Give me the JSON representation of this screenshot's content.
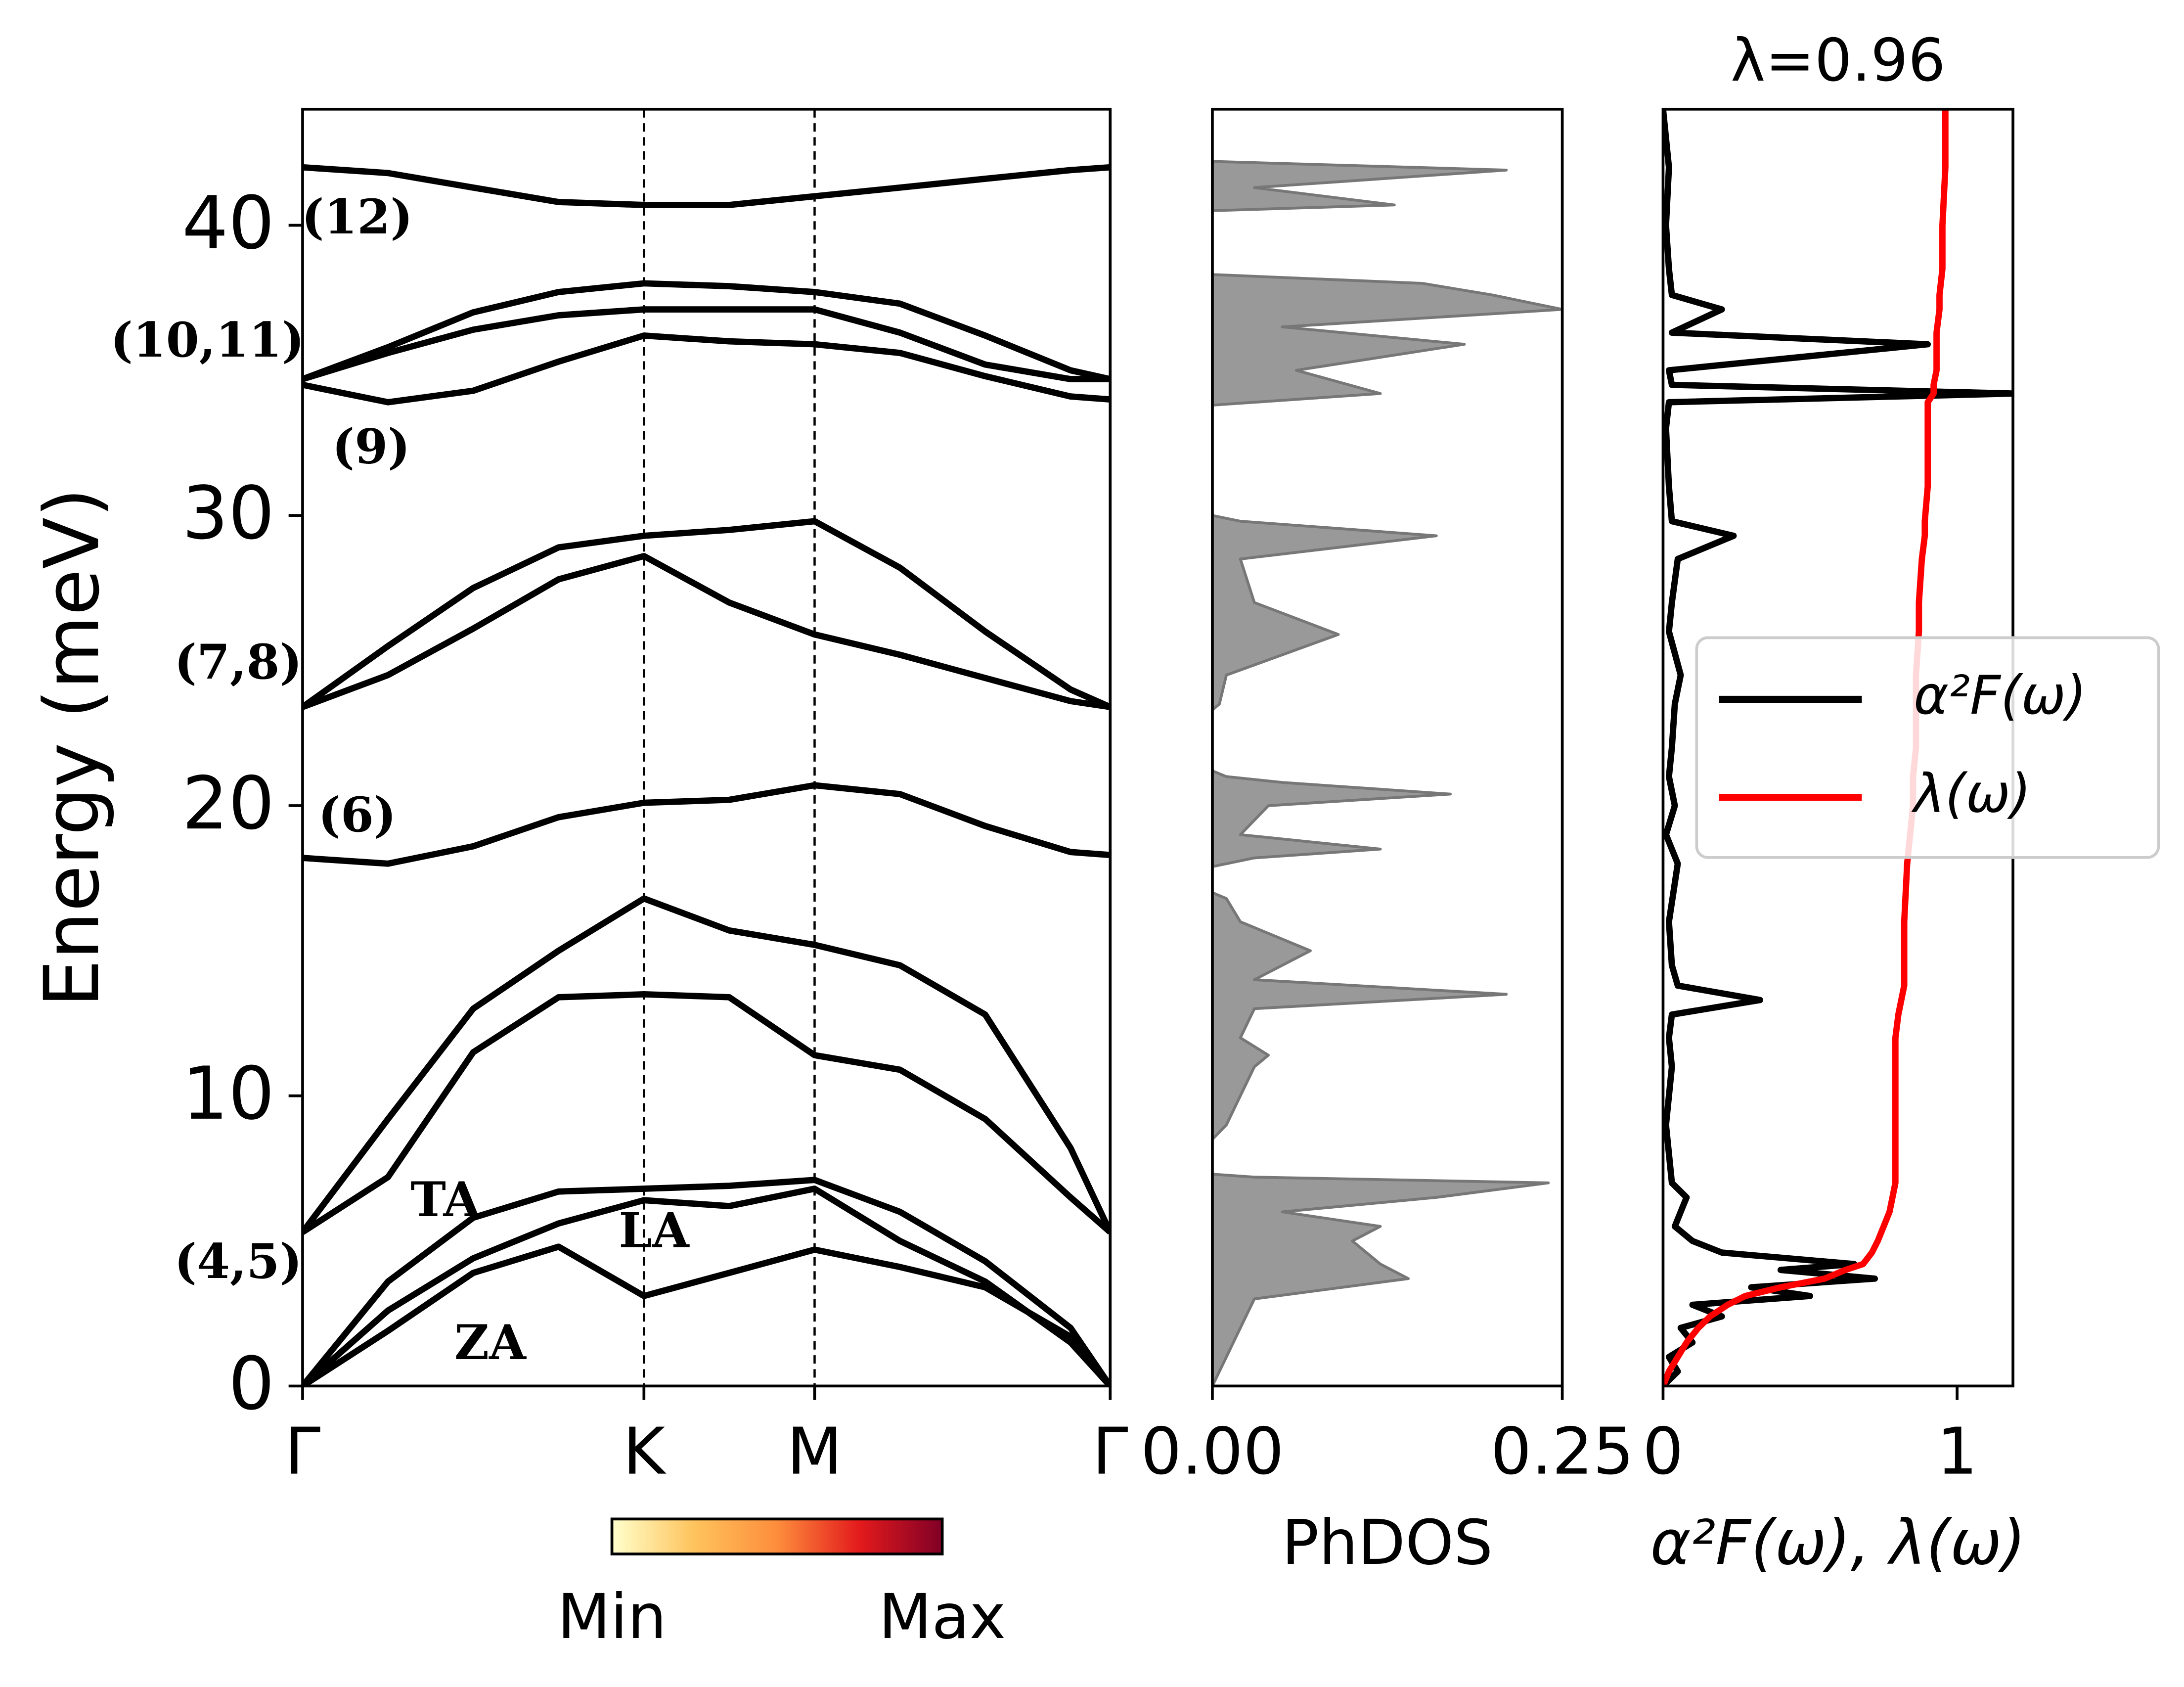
{
  "chart_data": [
    {
      "type": "line",
      "ylabel": "Energy (meV)",
      "x": [
        0,
        0.25,
        0.5,
        0.75,
        1,
        1.25,
        1.5,
        1.75,
        2,
        2.25,
        2.366
      ],
      "xlim": [
        0,
        2.366
      ],
      "xticks": [
        {
          "value": 0,
          "label": "Γ"
        },
        {
          "value": 1,
          "label": "K"
        },
        {
          "value": 1.5,
          "label": "M"
        },
        {
          "value": 2.366,
          "label": "Γ"
        }
      ],
      "ylim": [
        0,
        44
      ],
      "yticks": [
        0,
        10,
        20,
        30,
        40
      ],
      "series": [
        {
          "color": "#000000",
          "values": [
            0,
            1.9,
            3.9,
            4.8,
            3.1,
            3.9,
            4.7,
            4.1,
            3.4,
            1.7,
            0
          ]
        },
        {
          "color": "#000000",
          "values": [
            0,
            2.6,
            4.4,
            5.6,
            6.4,
            6.2,
            6.8,
            5.0,
            3.6,
            1.5,
            0
          ]
        },
        {
          "color": "#000000",
          "values": [
            0,
            3.6,
            5.8,
            6.7,
            6.8,
            6.9,
            7.1,
            6.0,
            4.3,
            2.0,
            0
          ]
        },
        {
          "color": "#000000",
          "values": [
            5.3,
            7.2,
            11.5,
            13.4,
            13.5,
            13.4,
            11.4,
            10.9,
            9.2,
            6.5,
            5.3
          ]
        },
        {
          "color": "#000000",
          "values": [
            5.3,
            9.2,
            13.0,
            15.0,
            16.8,
            15.7,
            15.2,
            14.5,
            12.8,
            8.2,
            5.3
          ]
        },
        {
          "color": "#000000",
          "values": [
            18.2,
            18.0,
            18.6,
            19.6,
            20.1,
            20.2,
            20.7,
            20.4,
            19.3,
            18.4,
            18.3
          ]
        },
        {
          "color": "#000000",
          "values": [
            23.4,
            24.5,
            26.1,
            27.8,
            28.6,
            27.0,
            25.9,
            25.2,
            24.4,
            23.6,
            23.4
          ]
        },
        {
          "color": "#000000",
          "values": [
            23.4,
            25.5,
            27.5,
            28.9,
            29.3,
            29.5,
            29.8,
            28.2,
            26.0,
            24.0,
            23.4
          ]
        },
        {
          "color": "#000000",
          "values": [
            34.5,
            33.9,
            34.3,
            35.3,
            36.2,
            36.0,
            35.9,
            35.6,
            34.8,
            34.1,
            34.0
          ]
        },
        {
          "color": "#000000",
          "values": [
            34.7,
            35.6,
            36.4,
            36.9,
            37.1,
            37.1,
            37.1,
            36.3,
            35.2,
            34.7,
            34.7
          ]
        },
        {
          "color": "#000000",
          "values": [
            34.7,
            35.8,
            37.0,
            37.7,
            38.0,
            37.9,
            37.7,
            37.3,
            36.2,
            35.0,
            34.7
          ]
        },
        {
          "color": "#000000",
          "values": [
            42.0,
            41.8,
            41.3,
            40.8,
            40.7,
            40.7,
            41.0,
            41.3,
            41.6,
            41.9,
            42.0
          ]
        }
      ],
      "annotations": [
        "(12)",
        "(10,11)",
        "(9)",
        "(7,8)",
        "(6)",
        "(4,5)",
        "TA",
        "LA",
        "ZA"
      ],
      "colorbar_labels": [
        "Min",
        "Max"
      ],
      "colorbar_colors": [
        "#ffffcc",
        "#fec35c",
        "#fd8d3c",
        "#e31a1c",
        "#800026"
      ]
    },
    {
      "type": "area",
      "xlabel": "PhDOS",
      "xlim": [
        0,
        0.25
      ],
      "xticks": [
        {
          "value": 0,
          "label": "0.00"
        },
        {
          "value": 0.25,
          "label": "0.25"
        }
      ],
      "ylim": [
        0,
        44
      ],
      "y": [
        0,
        1,
        2,
        3,
        3.7,
        4.2,
        5,
        5.5,
        6,
        6.5,
        7,
        7.2,
        7.3,
        8.5,
        9,
        10,
        11,
        11.4,
        12,
        13,
        13.5,
        14,
        15,
        16,
        16.8,
        17,
        17.9,
        18.2,
        18.5,
        19,
        20,
        20.4,
        20.8,
        21,
        21.2,
        23.3,
        23.5,
        24.5,
        25.9,
        27,
        28.5,
        29.3,
        29.8,
        30,
        33.8,
        34.2,
        35,
        35.9,
        36.5,
        37.1,
        37.6,
        38,
        38.3,
        40.5,
        40.7,
        41.3,
        41.9,
        42.2
      ],
      "series": [
        {
          "color": "#999999",
          "values": [
            0,
            0.01,
            0.02,
            0.03,
            0.14,
            0.12,
            0.1,
            0.12,
            0.05,
            0.16,
            0.24,
            0.03,
            0,
            0,
            0.01,
            0.02,
            0.03,
            0.04,
            0.02,
            0.03,
            0.21,
            0.03,
            0.07,
            0.02,
            0.01,
            0,
            0,
            0.03,
            0.12,
            0.02,
            0.04,
            0.17,
            0.05,
            0.01,
            0,
            0,
            0.005,
            0.01,
            0.09,
            0.03,
            0.02,
            0.16,
            0.02,
            0,
            0,
            0.12,
            0.06,
            0.18,
            0.05,
            0.25,
            0.2,
            0.15,
            0,
            0,
            0.13,
            0.03,
            0.21,
            0
          ]
        }
      ]
    },
    {
      "type": "line",
      "title": "λ=0.96",
      "xlabel": "α²F(ω), λ(ω)",
      "xlim": [
        0,
        1.19
      ],
      "xticks": [
        0,
        1
      ],
      "ylim": [
        0,
        44
      ],
      "legend": "right",
      "y": [
        0,
        0.5,
        1,
        1.5,
        2,
        2.4,
        2.8,
        3.1,
        3.4,
        3.7,
        4.0,
        4.2,
        4.6,
        5,
        5.5,
        6,
        6.5,
        7,
        8,
        9,
        10,
        11,
        12,
        12.8,
        13.3,
        13.8,
        14.5,
        16,
        18,
        19,
        20,
        21,
        22,
        23.5,
        24.5,
        26,
        27,
        28.5,
        29.3,
        29.8,
        31,
        33,
        33.9,
        34.2,
        34.5,
        35,
        35.9,
        36.3,
        37.1,
        37.6,
        38.5,
        40,
        42,
        44
      ],
      "series": [
        {
          "name": "α²F(ω)",
          "color": "#000000",
          "values": [
            0,
            0.05,
            0.02,
            0.1,
            0.06,
            0.2,
            0.1,
            0.5,
            0.3,
            0.72,
            0.4,
            0.65,
            0.2,
            0.1,
            0.04,
            0.06,
            0.08,
            0.03,
            0.02,
            0.01,
            0.02,
            0.03,
            0.02,
            0.03,
            0.33,
            0.05,
            0.03,
            0.02,
            0.05,
            0.01,
            0.04,
            0.02,
            0.03,
            0.04,
            0.06,
            0.02,
            0.03,
            0.05,
            0.24,
            0.03,
            0.02,
            0.01,
            0.02,
            1.19,
            0.03,
            0.02,
            0.9,
            0.03,
            0.2,
            0.03,
            0.02,
            0.01,
            0.02,
            0
          ]
        },
        {
          "name": "λ(ω)",
          "color": "#ff0000",
          "values": [
            0,
            0.02,
            0.05,
            0.08,
            0.12,
            0.16,
            0.22,
            0.28,
            0.4,
            0.55,
            0.62,
            0.68,
            0.71,
            0.73,
            0.75,
            0.77,
            0.78,
            0.79,
            0.79,
            0.79,
            0.79,
            0.79,
            0.79,
            0.8,
            0.81,
            0.82,
            0.82,
            0.82,
            0.83,
            0.84,
            0.85,
            0.85,
            0.86,
            0.86,
            0.86,
            0.87,
            0.87,
            0.88,
            0.89,
            0.89,
            0.9,
            0.9,
            0.9,
            0.92,
            0.92,
            0.93,
            0.93,
            0.93,
            0.94,
            0.94,
            0.95,
            0.95,
            0.96,
            0.96
          ]
        }
      ]
    }
  ]
}
